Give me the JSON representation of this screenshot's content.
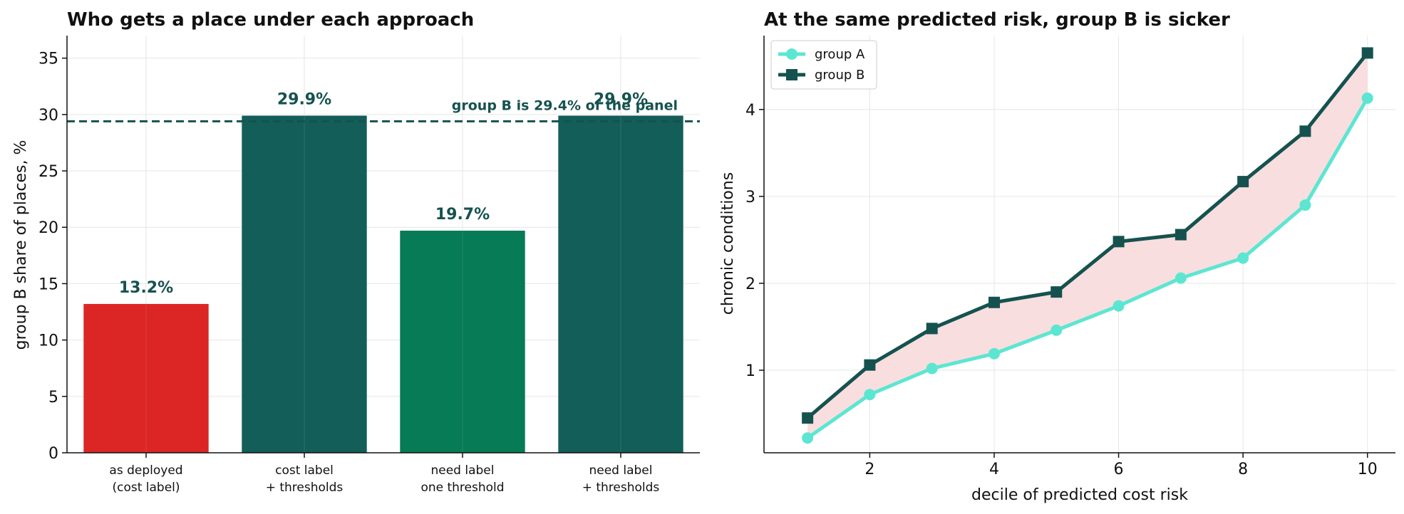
{
  "chart_data": [
    {
      "type": "bar",
      "title": "Who gets a place under each approach",
      "xlabel": "",
      "ylabel": "group B share of places, %",
      "ylim": [
        0,
        37
      ],
      "yticks": [
        0,
        5,
        10,
        15,
        20,
        25,
        30,
        35
      ],
      "categories": [
        [
          "as deployed",
          "(cost label)"
        ],
        [
          "cost label",
          "+ thresholds"
        ],
        [
          "need label",
          "one threshold"
        ],
        [
          "need label",
          "+ thresholds"
        ]
      ],
      "values": [
        13.2,
        29.9,
        19.7,
        29.9
      ],
      "value_labels": [
        "13.2%",
        "29.9%",
        "19.7%",
        "29.9%"
      ],
      "bar_colors": [
        "#dc2626",
        "#135e58",
        "#077a56",
        "#135e58"
      ],
      "reference_line": {
        "value": 29.4,
        "label": "group B is 29.4% of the panel",
        "color": "#15524f",
        "style": "dashed"
      },
      "grid": true
    },
    {
      "type": "line",
      "title": "At the same predicted risk, group B is sicker",
      "xlabel": "decile of predicted cost risk",
      "ylabel": "chronic conditions",
      "x": [
        1,
        2,
        3,
        4,
        5,
        6,
        7,
        8,
        9,
        10
      ],
      "xticks": [
        2,
        4,
        6,
        8,
        10
      ],
      "yticks": [
        1,
        2,
        3,
        4
      ],
      "xlim": [
        0.3,
        10.45
      ],
      "ylim": [
        0.05,
        4.85
      ],
      "series": [
        {
          "name": "group A",
          "color": "#5ce6d2",
          "marker": "circle",
          "values": [
            0.22,
            0.72,
            1.02,
            1.19,
            1.46,
            1.74,
            2.06,
            2.29,
            2.9,
            4.13
          ]
        },
        {
          "name": "group B",
          "color": "#15524f",
          "marker": "square",
          "values": [
            0.45,
            1.06,
            1.48,
            1.78,
            1.9,
            2.48,
            2.56,
            3.17,
            3.75,
            4.65
          ]
        }
      ],
      "fill_between_color": "#f8dede",
      "legend": "top-left",
      "grid": true
    }
  ]
}
